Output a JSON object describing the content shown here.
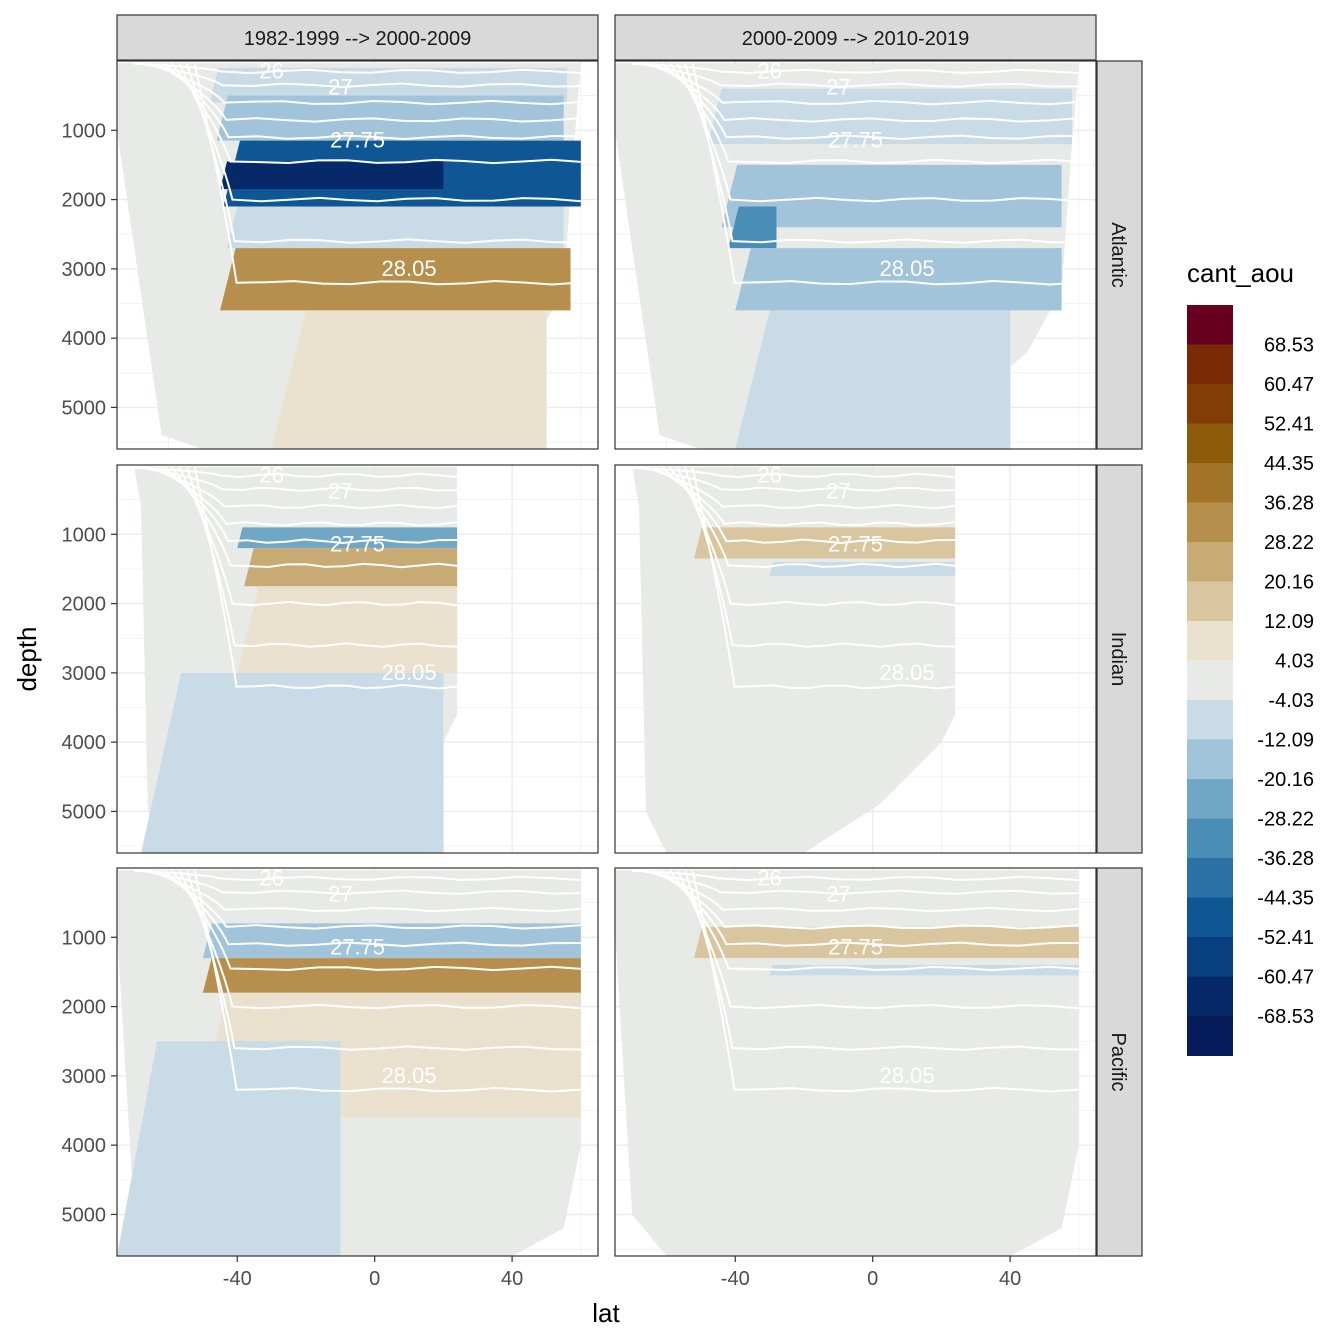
{
  "chart_data": {
    "type": "filled-contour-section",
    "xlabel": "lat",
    "ylabel": "depth",
    "xlim": [
      -75,
      65
    ],
    "ylim": [
      5600,
      0
    ],
    "x_ticks": [
      -40,
      0,
      40
    ],
    "y_ticks": [
      1000,
      2000,
      3000,
      4000,
      5000
    ],
    "columns": [
      "1982-1999 --> 2000-2009",
      "2000-2009 --> 2010-2019"
    ],
    "rows": [
      "Atlantic",
      "Indian",
      "Pacific"
    ],
    "legend": {
      "title": "cant_aou",
      "position": "right",
      "breaks": [
        "68.53",
        "60.47",
        "52.41",
        "44.35",
        "36.28",
        "28.22",
        "20.16",
        "12.09",
        "4.03",
        "-4.03",
        "-12.09",
        "-20.16",
        "-28.22",
        "-36.28",
        "-44.35",
        "-52.41",
        "-60.47",
        "-68.53"
      ],
      "colors": [
        "#67001f",
        "#7a2a05",
        "#823d05",
        "#8d5a0a",
        "#a27428",
        "#b78f4d",
        "#c7aa74",
        "#d9c69f",
        "#e9e0cd",
        "#e8eae7",
        "#c8dbe7",
        "#a1c4da",
        "#71a7c6",
        "#4a8db6",
        "#2c72a6",
        "#0f5694",
        "#073f80",
        "#06296a",
        "#071d5b"
      ]
    },
    "isopycnals": {
      "labels": [
        "26",
        "27",
        "27.75",
        "28.05"
      ],
      "color": "#ffffff"
    },
    "panels": [
      {
        "row": "Atlantic",
        "col": "1982-1999 --> 2000-2009",
        "bands": [
          {
            "lat": [
              -48,
              56
            ],
            "depth": [
              100,
              600
            ],
            "value": -8
          },
          {
            "lat": [
              -46,
              55
            ],
            "depth": [
              500,
              1150
            ],
            "value": -14
          },
          {
            "lat": [
              -44,
              60
            ],
            "depth": [
              1150,
              2100
            ],
            "value": -46
          },
          {
            "lat": [
              -45,
              20
            ],
            "depth": [
              1450,
              1850
            ],
            "value": -64
          },
          {
            "lat": [
              -43,
              55
            ],
            "depth": [
              2100,
              2700
            ],
            "value": -12
          },
          {
            "lat": [
              -45,
              57
            ],
            "depth": [
              2700,
              3600
            ],
            "value": 34
          },
          {
            "lat": [
              -30,
              50
            ],
            "depth": [
              3600,
              5600
            ],
            "value": 10
          }
        ]
      },
      {
        "row": "Atlantic",
        "col": "2000-2009 --> 2010-2019",
        "bands": [
          {
            "lat": [
              -48,
              58
            ],
            "depth": [
              400,
              1200
            ],
            "value": -12
          },
          {
            "lat": [
              -44,
              55
            ],
            "depth": [
              1500,
              2400
            ],
            "value": -16
          },
          {
            "lat": [
              -42,
              -28
            ],
            "depth": [
              2100,
              2700
            ],
            "value": -30
          },
          {
            "lat": [
              -40,
              55
            ],
            "depth": [
              2700,
              3600
            ],
            "value": -18
          },
          {
            "lat": [
              -40,
              40
            ],
            "depth": [
              3600,
              5600
            ],
            "value": -8
          }
        ]
      },
      {
        "row": "Indian",
        "col": "1982-1999 --> 2000-2009",
        "bands": [
          {
            "lat": [
              -40,
              24
            ],
            "depth": [
              900,
              1200
            ],
            "value": -22
          },
          {
            "lat": [
              -38,
              24
            ],
            "depth": [
              1200,
              1750
            ],
            "value": 22
          },
          {
            "lat": [
              -40,
              24
            ],
            "depth": [
              1750,
              3000
            ],
            "value": 10
          },
          {
            "lat": [
              -68,
              20
            ],
            "depth": [
              3000,
              5600
            ],
            "value": -8
          }
        ]
      },
      {
        "row": "Indian",
        "col": "2000-2009 --> 2010-2019",
        "bands": [
          {
            "lat": [
              -52,
              24
            ],
            "depth": [
              900,
              1350
            ],
            "value": 18
          },
          {
            "lat": [
              -30,
              24
            ],
            "depth": [
              1400,
              1600
            ],
            "value": -12
          }
        ]
      },
      {
        "row": "Pacific",
        "col": "1982-1999 --> 2000-2009",
        "bands": [
          {
            "lat": [
              -50,
              60
            ],
            "depth": [
              800,
              1300
            ],
            "value": -18
          },
          {
            "lat": [
              -50,
              60
            ],
            "depth": [
              1300,
              1800
            ],
            "value": 34
          },
          {
            "lat": [
              -52,
              60
            ],
            "depth": [
              1800,
              3600
            ],
            "value": 10
          },
          {
            "lat": [
              -75,
              -10
            ],
            "depth": [
              2500,
              5600
            ],
            "value": -8
          }
        ]
      },
      {
        "row": "Pacific",
        "col": "2000-2009 --> 2010-2019",
        "bands": [
          {
            "lat": [
              -52,
              60
            ],
            "depth": [
              850,
              1300
            ],
            "value": 20
          },
          {
            "lat": [
              -30,
              60
            ],
            "depth": [
              1400,
              1550
            ],
            "value": -10
          }
        ]
      }
    ]
  }
}
